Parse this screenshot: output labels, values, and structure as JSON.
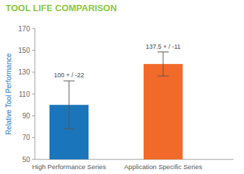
{
  "chart_data": {
    "type": "bar",
    "title": "TOOL LIFE COMPARISON",
    "y_label": "Relative Tool Performance",
    "categories": [
      "High Performance Series",
      "Application Specific Series"
    ],
    "values": [
      100,
      137.5
    ],
    "errors": [
      22,
      11
    ],
    "value_labels": [
      "100 + / -22",
      "137.5 + / -11"
    ],
    "colors": [
      "#1b75bb",
      "#f26a2a"
    ],
    "ylim": [
      50,
      170
    ],
    "yticks": [
      50,
      70,
      90,
      110,
      130,
      150,
      170
    ],
    "grid": false,
    "data_labels": true
  }
}
